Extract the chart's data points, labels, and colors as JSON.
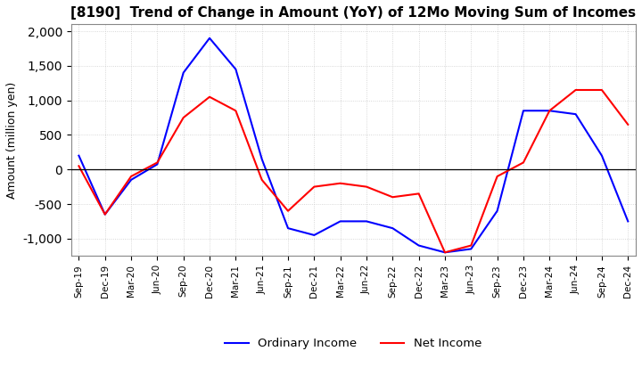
{
  "title": "[8190]  Trend of Change in Amount (YoY) of 12Mo Moving Sum of Incomes",
  "ylabel": "Amount (million yen)",
  "ylim": [
    -1250,
    2100
  ],
  "yticks": [
    -1000,
    -500,
    0,
    500,
    1000,
    1500,
    2000
  ],
  "x_labels": [
    "Sep-19",
    "Dec-19",
    "Mar-20",
    "Jun-20",
    "Sep-20",
    "Dec-20",
    "Mar-21",
    "Jun-21",
    "Sep-21",
    "Dec-21",
    "Mar-22",
    "Jun-22",
    "Sep-22",
    "Dec-22",
    "Mar-23",
    "Jun-23",
    "Sep-23",
    "Dec-23",
    "Mar-24",
    "Jun-24",
    "Sep-24",
    "Dec-24"
  ],
  "ordinary_income": [
    200,
    -650,
    -150,
    75,
    1400,
    1900,
    1450,
    150,
    -850,
    -950,
    -750,
    -750,
    -850,
    -1100,
    -1200,
    -1150,
    -600,
    850,
    850,
    800,
    200,
    -750
  ],
  "net_income": [
    50,
    -650,
    -100,
    100,
    750,
    1050,
    850,
    -150,
    -600,
    -250,
    -200,
    -250,
    -400,
    -350,
    -1200,
    -1100,
    -100,
    100,
    850,
    1150,
    1150,
    650
  ],
  "ordinary_color": "#0000ff",
  "net_color": "#ff0000",
  "background_color": "#ffffff",
  "grid_color": "#cccccc",
  "title_fontsize": 11,
  "legend_labels": [
    "Ordinary Income",
    "Net Income"
  ]
}
